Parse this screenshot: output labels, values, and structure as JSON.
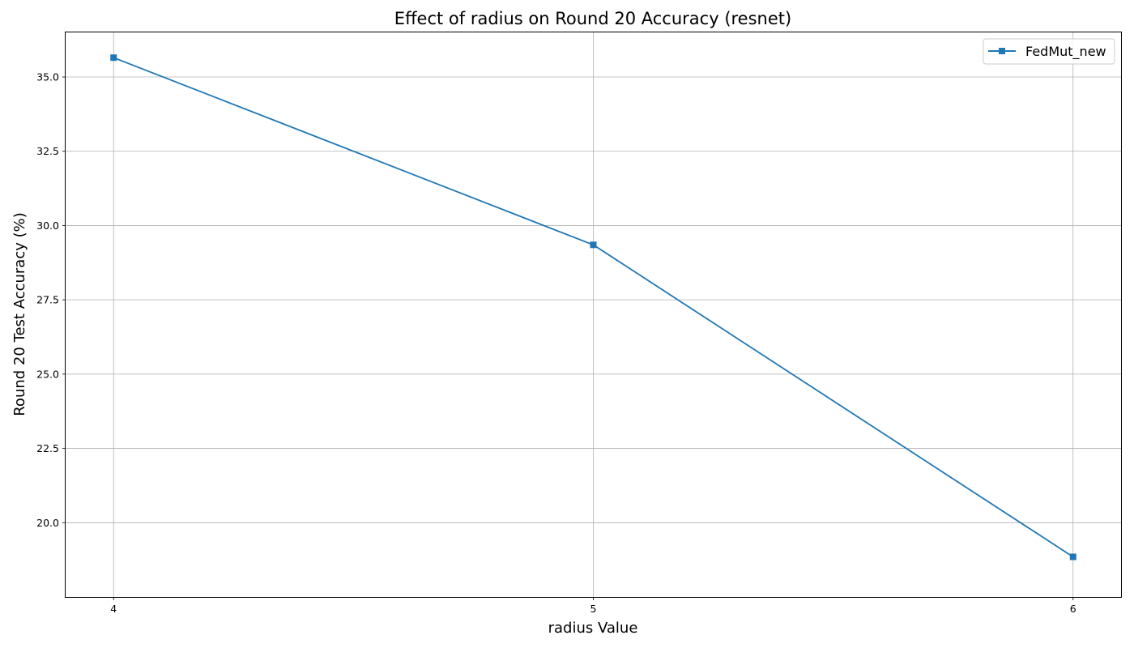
{
  "chart_data": {
    "type": "line",
    "title": "Effect of radius on Round 20 Accuracy (resnet)",
    "xlabel": "radius Value",
    "ylabel": "Round 20 Test Accuracy (%)",
    "x": [
      4,
      5,
      6
    ],
    "xticks": [
      "4",
      "5",
      "6"
    ],
    "yticks": [
      "20.0",
      "22.5",
      "25.0",
      "27.5",
      "30.0",
      "32.5",
      "35.0"
    ],
    "ylim": [
      17.5,
      36.5
    ],
    "xlim": [
      3.9,
      6.1
    ],
    "grid": true,
    "legend_position": "top-right",
    "series": [
      {
        "name": "FedMut_new",
        "values": [
          35.65,
          29.35,
          18.85
        ],
        "color": "#1f77b4",
        "marker": "square"
      }
    ]
  }
}
